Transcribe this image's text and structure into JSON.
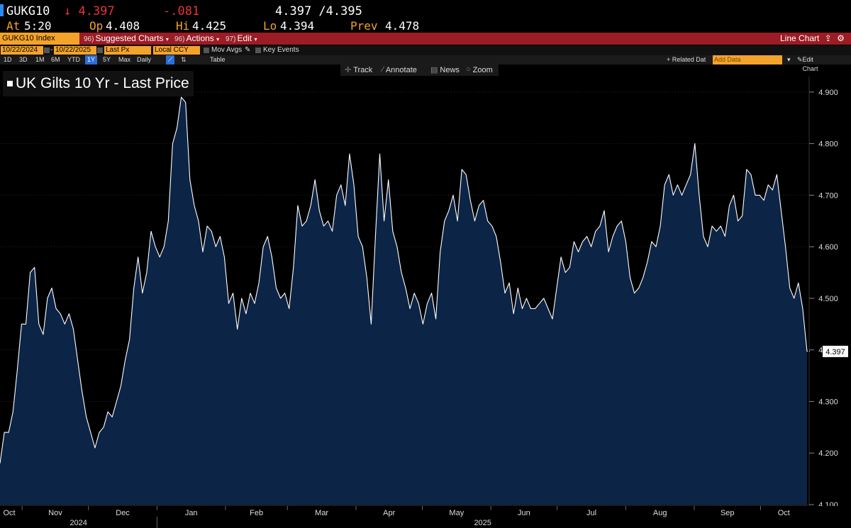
{
  "header": {
    "ticker": "GUKG10",
    "last": "↓ 4.397",
    "change": "-.081",
    "bid_ask": "4.397 /4.395",
    "at_label": "At",
    "at_value": "5:20",
    "open_label": "Op",
    "open_value": "4.408",
    "high_label": "Hi",
    "high_value": "4.425",
    "low_label": "Lo",
    "low_value": "4.394",
    "prev_label": "Prev",
    "prev_value": "4.478"
  },
  "menu": {
    "security": "GUKG10 Index",
    "suggested_num": "96)",
    "suggested": "Suggested Charts",
    "actions_num": "96)",
    "actions": "Actions",
    "edit_num": "97)",
    "edit": "Edit",
    "chart_type": "Line Chart"
  },
  "controls": {
    "start_date": "10/22/2024",
    "end_date": "10/22/2025",
    "field": "Last Px",
    "currency": "Local CCY",
    "mov_avgs": "Mov Avgs",
    "key_events": "Key Events"
  },
  "range": {
    "periods": [
      "1D",
      "3D",
      "1M",
      "6M",
      "YTD",
      "1Y",
      "5Y",
      "Max"
    ],
    "selected": "1Y",
    "frequency": "Daily",
    "table": "Table",
    "related": "+ Related Dat",
    "add_placeholder": "Add Data",
    "edit_chart": "Edit Chart"
  },
  "toolbar": {
    "track": "Track",
    "annotate": "Annotate",
    "news": "News",
    "zoom": "Zoom"
  },
  "colors": {
    "accent": "#f4a32a",
    "menubar": "#9b1c24",
    "down": "#e8343a",
    "area_fill": "#0c2446",
    "line": "#ffffff"
  },
  "chart_data": {
    "type": "area",
    "title": "UK Gilts 10 Yr - Last Price",
    "last_value_label": "4.397",
    "ylim": [
      4.1,
      4.93
    ],
    "yticks": [
      "4.100",
      "4.200",
      "4.300",
      "4.400",
      "4.500",
      "4.600",
      "4.700",
      "4.800",
      "4.900"
    ],
    "ytick_values": [
      4.1,
      4.2,
      4.3,
      4.4,
      4.5,
      4.6,
      4.7,
      4.8,
      4.9
    ],
    "x_start": "2024-10-22",
    "x_end": "2025-10-22",
    "month_labels": [
      "Oct",
      "Nov",
      "Dec",
      "Jan",
      "Feb",
      "Mar",
      "Apr",
      "May",
      "Jun",
      "Jul",
      "Aug",
      "Sep",
      "Oct"
    ],
    "year_labels": [
      "2024",
      "2025"
    ],
    "series": [
      {
        "values": [
          4.18,
          4.24,
          4.24,
          4.28,
          4.36,
          4.45,
          4.45,
          4.55,
          4.56,
          4.45,
          4.43,
          4.5,
          4.52,
          4.48,
          4.47,
          4.45,
          4.47,
          4.44,
          4.38,
          4.32,
          4.27,
          4.24,
          4.21,
          4.24,
          4.25,
          4.28,
          4.27,
          4.3,
          4.33,
          4.38,
          4.42,
          4.52,
          4.58,
          4.51,
          4.55,
          4.63,
          4.6,
          4.58,
          4.6,
          4.65,
          4.8,
          4.83,
          4.89,
          4.88,
          4.73,
          4.68,
          4.65,
          4.59,
          4.64,
          4.63,
          4.6,
          4.62,
          4.58,
          4.49,
          4.51,
          4.44,
          4.5,
          4.47,
          4.51,
          4.49,
          4.53,
          4.6,
          4.62,
          4.58,
          4.52,
          4.5,
          4.51,
          4.48,
          4.56,
          4.68,
          4.64,
          4.65,
          4.68,
          4.73,
          4.67,
          4.64,
          4.65,
          4.63,
          4.7,
          4.72,
          4.68,
          4.78,
          4.72,
          4.62,
          4.6,
          4.54,
          4.45,
          4.62,
          4.78,
          4.65,
          4.73,
          4.63,
          4.6,
          4.55,
          4.52,
          4.48,
          4.51,
          4.49,
          4.45,
          4.49,
          4.51,
          4.46,
          4.59,
          4.65,
          4.67,
          4.7,
          4.65,
          4.75,
          4.74,
          4.69,
          4.65,
          4.68,
          4.69,
          4.65,
          4.64,
          4.62,
          4.57,
          4.51,
          4.53,
          4.47,
          4.52,
          4.48,
          4.5,
          4.48,
          4.48,
          4.49,
          4.5,
          4.48,
          4.46,
          4.52,
          4.58,
          4.55,
          4.56,
          4.61,
          4.59,
          4.61,
          4.62,
          4.6,
          4.63,
          4.64,
          4.67,
          4.59,
          4.62,
          4.64,
          4.65,
          4.61,
          4.54,
          4.51,
          4.52,
          4.54,
          4.57,
          4.61,
          4.6,
          4.64,
          4.72,
          4.74,
          4.7,
          4.72,
          4.7,
          4.72,
          4.74,
          4.8,
          4.7,
          4.62,
          4.6,
          4.64,
          4.63,
          4.64,
          4.62,
          4.68,
          4.7,
          4.65,
          4.66,
          4.75,
          4.74,
          4.7,
          4.7,
          4.69,
          4.72,
          4.71,
          4.74,
          4.67,
          4.6,
          4.52,
          4.5,
          4.53,
          4.48,
          4.397
        ]
      }
    ]
  }
}
